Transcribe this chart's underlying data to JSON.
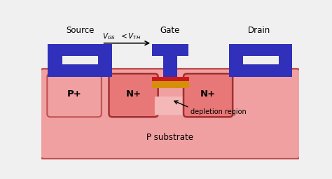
{
  "bg_color": "#f0f0f0",
  "substrate_color": "#f0a0a0",
  "substrate_dark": "#c05050",
  "n_plus_fill": "#e87878",
  "n_plus_edge": "#a03030",
  "p_plus_fill": "#f0a0a0",
  "p_plus_edge": "#c05050",
  "blue_metal": "#3030bb",
  "gate_oxide_yellow": "#d4900a",
  "gate_oxide_red": "#cc1a1a",
  "source_label": "Source",
  "gate_label": "Gate",
  "drain_label": "Drain",
  "p_substrate_label": "P substrate",
  "p_plus_label": "P+",
  "n_plus_left_label": "N+",
  "n_plus_right_label": "N+",
  "depletion_label": "depletion region",
  "xlim": [
    0,
    10
  ],
  "ylim": [
    0,
    5.6
  ]
}
